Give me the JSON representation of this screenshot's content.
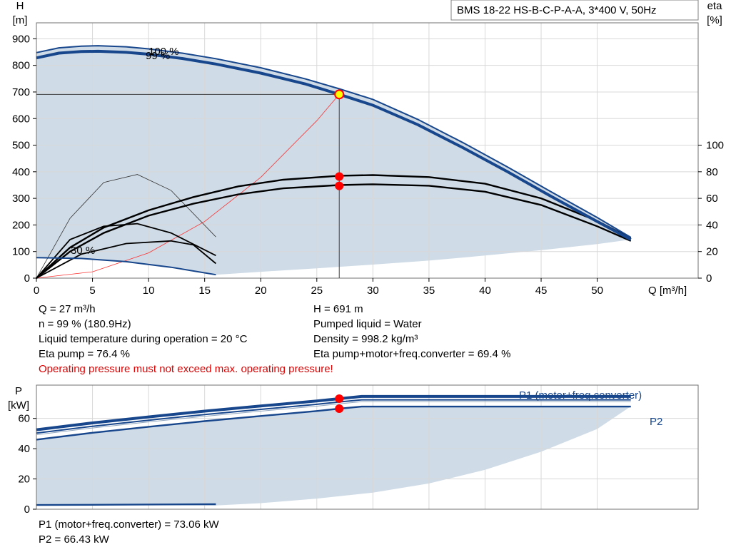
{
  "title_box": "BMS 18-22 HS-B-C-P-A-A, 3*400 V, 50Hz",
  "chart_data": [
    {
      "type": "line",
      "y_axis_label_left": [
        "H",
        "[m]"
      ],
      "y_axis_label_right": [
        "eta",
        "[%]"
      ],
      "x_axis_label": "Q [m³/h]",
      "xlim": [
        0,
        59
      ],
      "ylim": [
        0,
        960
      ],
      "x_ticks": [
        0,
        5,
        10,
        15,
        20,
        25,
        30,
        35,
        40,
        45,
        50
      ],
      "y_ticks": [
        0,
        100,
        200,
        300,
        400,
        500,
        600,
        700,
        800,
        900
      ],
      "eta_ticks": [
        0,
        20,
        40,
        60,
        80,
        100
      ],
      "eta_scale": 5,
      "series": [
        {
          "name": "100 %",
          "kind": "head",
          "x": [
            0,
            2,
            4,
            5.5,
            8,
            10,
            13,
            16,
            20,
            24,
            27,
            30,
            34,
            38,
            42,
            46,
            50,
            53
          ],
          "y": [
            848,
            866,
            872,
            874,
            870,
            862,
            846,
            825,
            791,
            749,
            712,
            672,
            597,
            510,
            418,
            322,
            228,
            153
          ]
        },
        {
          "name": "99 %",
          "kind": "head",
          "x": [
            0,
            2,
            4,
            5.5,
            8,
            10,
            13,
            16,
            20,
            24,
            27,
            30,
            34,
            38,
            42,
            46,
            50,
            53
          ],
          "y": [
            828,
            846,
            852,
            853,
            849,
            842,
            826,
            805,
            771,
            730,
            691,
            650,
            577,
            491,
            400,
            305,
            213,
            145
          ]
        },
        {
          "name": "30 %",
          "kind": "head",
          "x": [
            0,
            4,
            8,
            12,
            16
          ],
          "y": [
            77,
            74,
            62,
            41,
            13
          ]
        }
      ],
      "eta_curves": [
        {
          "x": [
            0,
            3,
            6,
            10,
            14,
            18,
            22,
            27,
            30,
            35,
            40,
            45,
            50,
            53
          ],
          "y": [
            0,
            23,
            38,
            51,
            61,
            69,
            74,
            77,
            77.5,
            76,
            71,
            60,
            43,
            30
          ]
        },
        {
          "x": [
            0,
            3,
            6,
            10,
            14,
            18,
            22,
            27,
            30,
            35,
            40,
            45,
            50,
            53
          ],
          "y": [
            0,
            20,
            34,
            47,
            56,
            63,
            67.5,
            70,
            70.6,
            69.5,
            65,
            55,
            39,
            28
          ]
        },
        {
          "x": [
            0,
            3,
            6,
            9,
            12,
            16
          ],
          "y": [
            0,
            29,
            39,
            41,
            34,
            17
          ]
        },
        {
          "x": [
            0,
            4,
            8,
            12,
            14,
            16
          ],
          "y": [
            0,
            18,
            26,
            28,
            25,
            11
          ]
        }
      ],
      "eta_thin_curve": {
        "x": [
          0,
          3,
          6,
          9,
          12,
          16
        ],
        "y": [
          0,
          45,
          72,
          78,
          66,
          31
        ]
      },
      "system_curve": {
        "x": [
          0,
          5,
          10,
          15,
          20,
          25,
          27
        ],
        "y": [
          0,
          24,
          95,
          213,
          379,
          592,
          691
        ]
      },
      "operating_point": {
        "x": 27,
        "y": 691
      },
      "eta_points": [
        76.4,
        69.4
      ],
      "envelope_lower": {
        "x": [
          16,
          20,
          25,
          30,
          35,
          40,
          45,
          50,
          53
        ],
        "y": [
          13,
          24,
          37,
          51,
          66,
          85,
          105,
          128,
          145
        ]
      }
    },
    {
      "type": "line",
      "y_axis_label": [
        "P",
        "[kW]"
      ],
      "xlim": [
        0,
        59
      ],
      "ylim": [
        0,
        82
      ],
      "y_ticks": [
        0,
        20,
        40,
        60
      ],
      "series": [
        {
          "name": "P1 (motor+freq.converter)",
          "x": [
            0,
            5,
            10,
            15,
            20,
            25,
            27,
            29,
            35,
            40,
            45,
            50,
            53
          ],
          "y": [
            52.5,
            57,
            61,
            64.8,
            68.2,
            71.5,
            73.06,
            74.5,
            74.5,
            74.5,
            74.5,
            74.5,
            74.5
          ]
        },
        {
          "name": "P2",
          "x": [
            0,
            5,
            10,
            15,
            20,
            25,
            27,
            29,
            35,
            40,
            45,
            50,
            53
          ],
          "y": [
            46,
            50.5,
            54.5,
            58.2,
            61.6,
            64.9,
            66.43,
            67.8,
            67.8,
            67.8,
            67.8,
            67.8,
            67.8
          ]
        }
      ],
      "low_speed_line": {
        "x": [
          0,
          16
        ],
        "y": [
          2.8,
          3.3
        ]
      },
      "operating_points": [
        73.06,
        66.43
      ],
      "envelope_lower": {
        "x": [
          16,
          20,
          25,
          30,
          35,
          40,
          45,
          50,
          53
        ],
        "y": [
          2.5,
          4,
          7,
          11,
          17,
          26,
          38,
          53,
          68
        ]
      }
    }
  ],
  "info_left": [
    "Q = 27 m³/h",
    "n = 99 % (180.9Hz)",
    "Liquid temperature during operation = 20 °C",
    "Eta pump = 76.4 %"
  ],
  "info_right": [
    "H = 691 m",
    "Pumped liquid = Water",
    "Density = 998.2 kg/m³",
    "Eta pump+motor+freq.converter = 69.4 %"
  ],
  "warning": "Operating pressure must not exceed max. operating pressure!",
  "power_info": [
    "P1 (motor+freq.converter) = 73.06 kW",
    "P2 = 66.43 kW"
  ],
  "colors": {
    "curve": "#17468c",
    "fill": "#cfdbe6",
    "eta": "#000000",
    "point": "#ff0000",
    "op_fill": "#ffff00",
    "system": "#ff3030",
    "grid": "#d8d8d8",
    "warning": "#e00000"
  }
}
